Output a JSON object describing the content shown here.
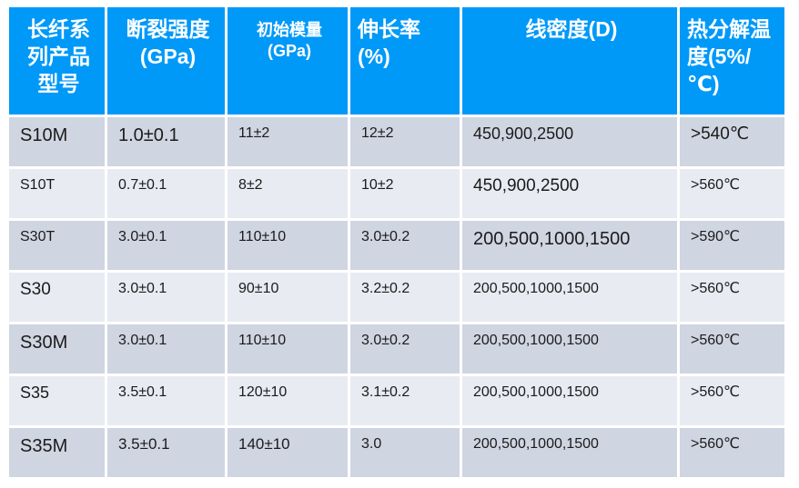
{
  "colors": {
    "header_bg": "#0199f8",
    "header_text": "#ffffff",
    "row_dark_bg": "#cfd5e1",
    "row_light_bg": "#e9ebf2",
    "body_text": "#1b1b1b",
    "page_bg": "#ffffff"
  },
  "table": {
    "headers": {
      "model": "长纤系\n列产品\n型号",
      "strength": "断裂强度\n(GPa)",
      "modulus": "初始模量\n(GPa)",
      "elongation": "伸长率(%)",
      "density": "线密度(D)",
      "temperature": "热分解温\n度(5%/℃)"
    },
    "rows": [
      {
        "model": "S10M",
        "strength": "1.0±0.1",
        "modulus": "11±2",
        "elongation": "12±2",
        "density": "450,900,2500",
        "temperature": ">540℃"
      },
      {
        "model": "S10T",
        "strength": "0.7±0.1",
        "modulus": "8±2",
        "elongation": "10±2",
        "density": "450,900,2500",
        "temperature": ">560℃"
      },
      {
        "model": "S30T",
        "strength": "3.0±0.1",
        "modulus": "110±10",
        "elongation": "3.0±0.2",
        "density": "200,500,1000,1500",
        "temperature": ">590℃"
      },
      {
        "model": "S30",
        "strength": "3.0±0.1",
        "modulus": "90±10",
        "elongation": "3.2±0.2",
        "density": "200,500,1000,1500",
        "temperature": ">560℃"
      },
      {
        "model": "S30M",
        "strength": "3.0±0.1",
        "modulus": "110±10",
        "elongation": "3.0±0.2",
        "density": "200,500,1000,1500",
        "temperature": ">560℃"
      },
      {
        "model": "S35",
        "strength": "3.5±0.1",
        "modulus": "120±10",
        "elongation": "3.1±0.2",
        "density": "200,500,1000,1500",
        "temperature": ">560℃"
      },
      {
        "model": "S35M",
        "strength": "3.5±0.1",
        "modulus": "140±10",
        "elongation": "3.0",
        "density": "200,500,1000,1500",
        "temperature": ">560℃"
      }
    ]
  }
}
